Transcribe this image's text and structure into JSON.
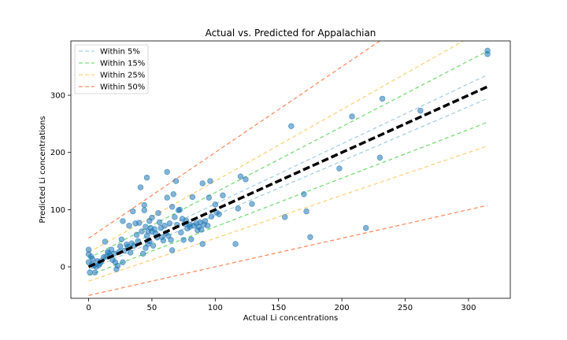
{
  "chart_data": {
    "type": "scatter",
    "title": "Actual vs. Predicted for Appalachian",
    "xlabel": "Actual Li concentrations",
    "ylabel": "Predicted Li concentrations",
    "xlim": [
      -14,
      333
    ],
    "ylim": [
      -55,
      395
    ],
    "xticks": [
      0,
      50,
      100,
      150,
      200,
      250,
      300
    ],
    "yticks": [
      0,
      100,
      200,
      300
    ],
    "grid": false,
    "legend_position": "top-left",
    "reference_line": {
      "name": "y = x",
      "x": [
        0,
        315
      ],
      "y": [
        0,
        315
      ],
      "color": "#000000",
      "style": "dashed-bold"
    },
    "bands": [
      {
        "name": "Within 5%",
        "fraction": 0.05,
        "offset": 5,
        "color": "#a6cee3"
      },
      {
        "name": "Within 15%",
        "fraction": 0.15,
        "offset": 15,
        "color": "#77dd77"
      },
      {
        "name": "Within 25%",
        "fraction": 0.25,
        "offset": 25,
        "color": "#fdd17c"
      },
      {
        "name": "Within 50%",
        "fraction": 0.5,
        "offset": 50,
        "color": "#fc8d62"
      }
    ],
    "series": [
      {
        "color": "#1f77b4",
        "opacity": 0.55,
        "points": [
          [
            0,
            30
          ],
          [
            0,
            22
          ],
          [
            0,
            8
          ],
          [
            1,
            -10
          ],
          [
            2,
            18
          ],
          [
            3,
            5
          ],
          [
            3,
            14
          ],
          [
            4,
            2
          ],
          [
            5,
            -10
          ],
          [
            6,
            0
          ],
          [
            7,
            10
          ],
          [
            8,
            3
          ],
          [
            9,
            6
          ],
          [
            10,
            10
          ],
          [
            12,
            17
          ],
          [
            13,
            44
          ],
          [
            14,
            18
          ],
          [
            15,
            26
          ],
          [
            16,
            24
          ],
          [
            17,
            20
          ],
          [
            18,
            30
          ],
          [
            19,
            12
          ],
          [
            20,
            23
          ],
          [
            21,
            8
          ],
          [
            22,
            -4
          ],
          [
            23,
            2
          ],
          [
            24,
            26
          ],
          [
            25,
            36
          ],
          [
            26,
            48
          ],
          [
            27,
            8
          ],
          [
            27,
            80
          ],
          [
            28,
            28
          ],
          [
            30,
            39
          ],
          [
            31,
            35
          ],
          [
            32,
            72
          ],
          [
            33,
            25
          ],
          [
            34,
            41
          ],
          [
            35,
            97
          ],
          [
            36,
            37
          ],
          [
            37,
            76
          ],
          [
            38,
            56
          ],
          [
            39,
            45
          ],
          [
            40,
            77
          ],
          [
            41,
            139
          ],
          [
            42,
            62
          ],
          [
            43,
            23
          ],
          [
            44,
            108
          ],
          [
            44,
            99
          ],
          [
            45,
            70
          ],
          [
            45,
            33
          ],
          [
            46,
            156
          ],
          [
            46,
            54
          ],
          [
            47,
            40
          ],
          [
            47,
            62
          ],
          [
            48,
            80
          ],
          [
            48,
            45
          ],
          [
            49,
            68
          ],
          [
            50,
            86
          ],
          [
            50,
            62
          ],
          [
            51,
            37
          ],
          [
            52,
            66
          ],
          [
            53,
            58
          ],
          [
            54,
            52
          ],
          [
            55,
            94
          ],
          [
            56,
            78
          ],
          [
            57,
            68
          ],
          [
            58,
            52
          ],
          [
            59,
            46
          ],
          [
            60,
            72
          ],
          [
            61,
            59
          ],
          [
            62,
            166
          ],
          [
            62,
            121
          ],
          [
            63,
            54
          ],
          [
            64,
            76
          ],
          [
            65,
            47
          ],
          [
            66,
            105
          ],
          [
            66,
            29
          ],
          [
            67,
            127
          ],
          [
            68,
            87
          ],
          [
            69,
            150
          ],
          [
            70,
            73
          ],
          [
            71,
            99
          ],
          [
            72,
            100
          ],
          [
            73,
            60
          ],
          [
            74,
            84
          ],
          [
            75,
            47
          ],
          [
            76,
            75
          ],
          [
            77,
            81
          ],
          [
            78,
            67
          ],
          [
            80,
            70
          ],
          [
            80,
            74
          ],
          [
            81,
            48
          ],
          [
            82,
            122
          ],
          [
            83,
            72
          ],
          [
            85,
            76
          ],
          [
            86,
            64
          ],
          [
            87,
            70
          ],
          [
            88,
            78
          ],
          [
            89,
            65
          ],
          [
            90,
            146
          ],
          [
            90,
            40
          ],
          [
            91,
            74
          ],
          [
            92,
            80
          ],
          [
            94,
            72
          ],
          [
            95,
            121
          ],
          [
            96,
            150
          ],
          [
            97,
            88
          ],
          [
            100,
            109
          ],
          [
            101,
            95
          ],
          [
            103,
            92
          ],
          [
            106,
            125
          ],
          [
            116,
            40
          ],
          [
            118,
            102
          ],
          [
            120,
            158
          ],
          [
            124,
            153
          ],
          [
            129,
            110
          ],
          [
            155,
            87
          ],
          [
            160,
            246
          ],
          [
            170,
            127
          ],
          [
            172,
            97
          ],
          [
            175,
            52
          ],
          [
            198,
            172
          ],
          [
            208,
            263
          ],
          [
            219,
            68
          ],
          [
            230,
            191
          ],
          [
            232,
            294
          ],
          [
            262,
            273
          ],
          [
            315,
            378
          ],
          [
            315,
            372
          ]
        ]
      }
    ]
  }
}
